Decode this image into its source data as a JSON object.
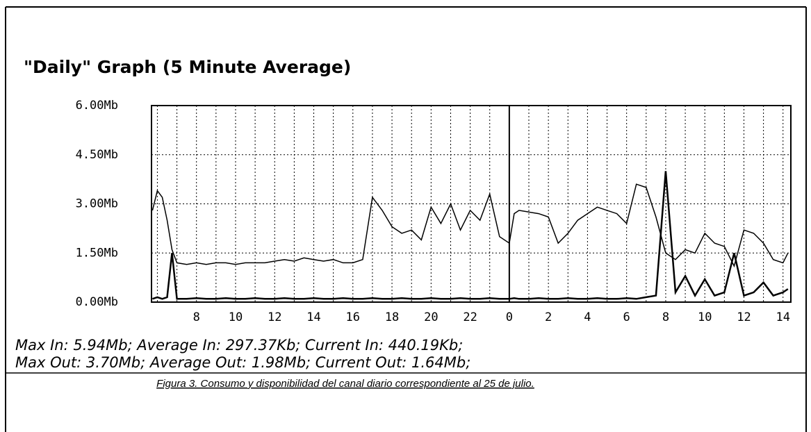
{
  "chart_data": {
    "type": "line",
    "title": "\"Daily\" Graph (5 Minute Average)",
    "x": [
      5.75,
      6,
      6.25,
      6.5,
      6.75,
      7,
      7.5,
      8,
      8.5,
      9,
      9.5,
      10,
      10.5,
      11,
      11.5,
      12,
      12.5,
      13,
      13.5,
      14,
      14.5,
      15,
      15.5,
      16,
      16.5,
      17,
      17.5,
      18,
      18.5,
      19,
      19.5,
      20,
      20.5,
      21,
      21.5,
      22,
      22.5,
      23,
      23.5,
      24,
      24.25,
      24.5,
      25,
      25.5,
      26,
      26.5,
      27,
      27.5,
      28,
      28.5,
      29,
      29.5,
      30,
      30.5,
      31,
      31.5,
      32,
      32.5,
      33,
      33.5,
      34,
      34.5,
      35,
      35.5,
      36,
      36.5,
      37,
      37.5,
      38,
      38.25
    ],
    "series": [
      {
        "color": "#000000",
        "values": [
          2.8,
          3.4,
          3.2,
          2.5,
          1.6,
          1.2,
          1.15,
          1.2,
          1.15,
          1.2,
          1.2,
          1.15,
          1.2,
          1.2,
          1.2,
          1.25,
          1.3,
          1.25,
          1.35,
          1.3,
          1.25,
          1.3,
          1.2,
          1.2,
          1.3,
          3.2,
          2.8,
          2.3,
          2.1,
          2.2,
          1.9,
          2.9,
          2.4,
          3.0,
          2.2,
          2.8,
          2.5,
          3.3,
          2.0,
          1.8,
          2.7,
          2.8,
          2.75,
          2.7,
          2.6,
          1.8,
          2.1,
          2.5,
          2.7,
          2.9,
          2.8,
          2.7,
          2.4,
          3.6,
          3.5,
          2.6,
          1.5,
          1.3,
          1.6,
          1.5,
          2.1,
          1.8,
          1.7,
          1.1,
          2.2,
          2.1,
          1.8,
          1.3,
          1.2,
          1.5
        ]
      },
      {
        "color": "#000000",
        "values": [
          0.1,
          0.15,
          0.1,
          0.15,
          1.5,
          0.1,
          0.1,
          0.12,
          0.1,
          0.1,
          0.12,
          0.1,
          0.1,
          0.12,
          0.1,
          0.1,
          0.12,
          0.1,
          0.1,
          0.12,
          0.1,
          0.1,
          0.12,
          0.1,
          0.1,
          0.12,
          0.1,
          0.1,
          0.12,
          0.1,
          0.1,
          0.12,
          0.1,
          0.1,
          0.12,
          0.1,
          0.1,
          0.12,
          0.1,
          0.1,
          0.12,
          0.1,
          0.1,
          0.12,
          0.1,
          0.1,
          0.12,
          0.1,
          0.1,
          0.12,
          0.1,
          0.1,
          0.12,
          0.1,
          0.15,
          0.2,
          4.0,
          0.3,
          0.8,
          0.2,
          0.7,
          0.2,
          0.3,
          1.5,
          0.2,
          0.3,
          0.6,
          0.2,
          0.3,
          0.4
        ]
      }
    ],
    "xlim": [
      5.7,
      38.4
    ],
    "xticks": [
      8,
      10,
      12,
      14,
      16,
      18,
      20,
      22,
      {
        "value": 24,
        "label": "0"
      },
      {
        "value": 26,
        "label": "2"
      },
      {
        "value": 28,
        "label": "4"
      },
      {
        "value": 30,
        "label": "6"
      },
      {
        "value": 32,
        "label": "8"
      },
      {
        "value": 34,
        "label": "10"
      },
      {
        "value": 36,
        "label": "12"
      },
      {
        "value": 38,
        "label": "14"
      }
    ],
    "ylim": [
      0,
      6
    ],
    "yticks": [
      {
        "value": 0,
        "label": "0.00Mb"
      },
      {
        "value": 1.5,
        "label": "1.50Mb"
      },
      {
        "value": 3,
        "label": "3.00Mb"
      },
      {
        "value": 4.5,
        "label": "4.50Mb"
      },
      {
        "value": 6,
        "label": "6.00Mb"
      }
    ],
    "grid": true,
    "annotations": [
      "Max In: 5.94Mb; Average In: 297.37Kb; Current In: 440.19Kb;",
      "Max Out: 3.70Mb; Average Out: 1.98Mb; Current Out: 1.64Mb;"
    ]
  },
  "caption": "Figura 3. Consumo y disponibilidad del canal diario correspondiente al 25 de julio."
}
